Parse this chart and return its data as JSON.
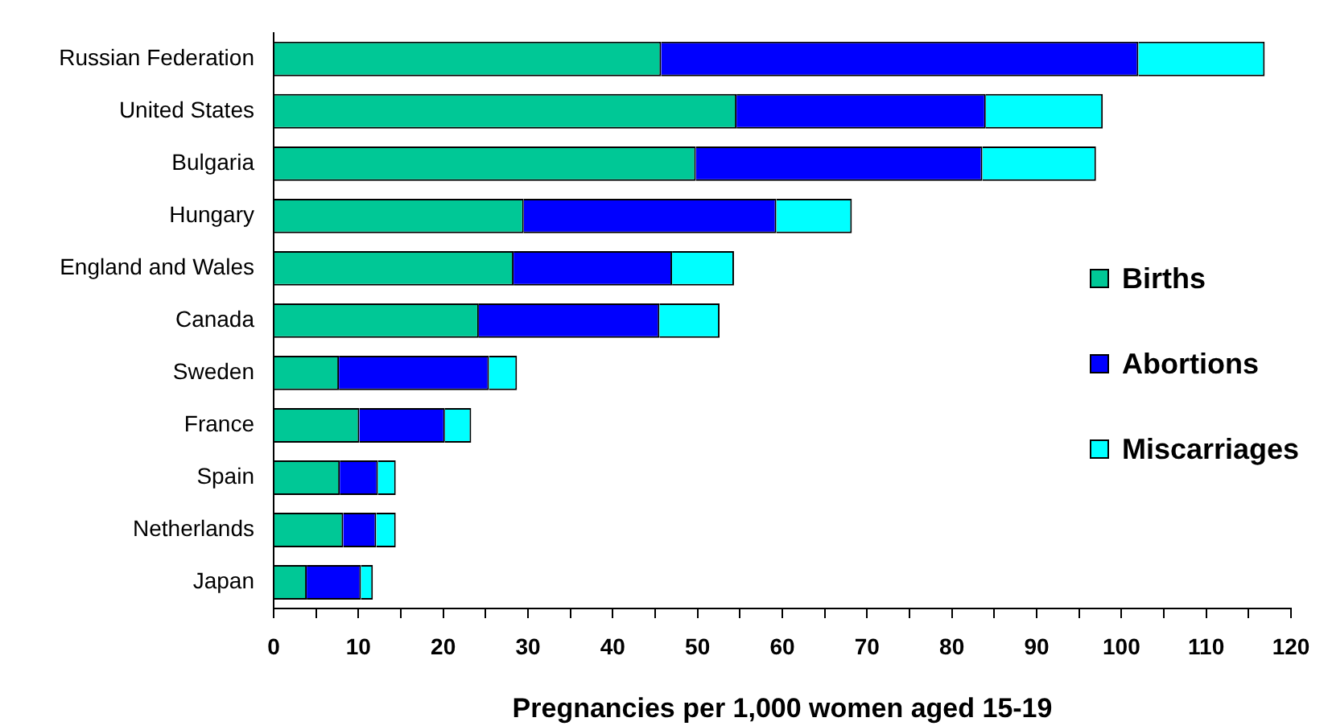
{
  "chart_data": {
    "type": "bar",
    "orientation": "horizontal",
    "stacked": true,
    "categories": [
      "Russian Federation",
      "United States",
      "Bulgaria",
      "Hungary",
      "England and Wales",
      "Canada",
      "Sweden",
      "France",
      "Spain",
      "Netherlands",
      "Japan"
    ],
    "series": [
      {
        "name": "Births",
        "color": "#00c896",
        "values": [
          45.7,
          54.6,
          49.8,
          29.5,
          28.3,
          24.2,
          7.7,
          10.1,
          7.8,
          8.2,
          3.9
        ]
      },
      {
        "name": "Abortions",
        "color": "#0000ff",
        "values": [
          56.3,
          29.4,
          33.8,
          29.8,
          18.7,
          21.3,
          17.7,
          10.1,
          4.5,
          3.9,
          6.4
        ]
      },
      {
        "name": "Miscarriages",
        "color": "#00ffff",
        "values": [
          14.9,
          13.8,
          13.4,
          8.9,
          7.3,
          7.1,
          3.3,
          3.1,
          2.1,
          2.3,
          1.4
        ]
      }
    ],
    "xlim": [
      0,
      120
    ],
    "xticks": [
      0,
      {
        "value": 5,
        "label": null
      },
      10,
      {
        "value": 15,
        "label": null
      },
      20,
      {
        "value": 25,
        "label": null
      },
      30,
      {
        "value": 35,
        "label": null
      },
      40,
      {
        "value": 45,
        "label": null
      },
      50,
      {
        "value": 55,
        "label": null
      },
      60,
      {
        "value": 65,
        "label": null
      },
      70,
      {
        "value": 75,
        "label": null
      },
      80,
      {
        "value": 85,
        "label": null
      },
      90,
      {
        "value": 95,
        "label": null
      },
      100,
      {
        "value": 105,
        "label": null
      },
      110,
      {
        "value": 115,
        "label": null
      },
      120
    ],
    "xlabel": "Pregnancies per 1,000 women aged 15-19",
    "grid": false,
    "legend": "right"
  }
}
